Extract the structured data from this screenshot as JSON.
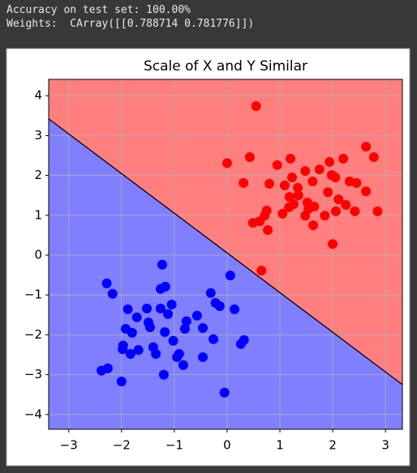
{
  "output_text": [
    "Accuracy on test set: 100.00%",
    "Weights:  CArray([[0.788714 0.781776]])"
  ],
  "chart_data": {
    "type": "scatter",
    "title": "Scale of X and Y Similar",
    "xlim": [
      -3.38,
      3.32
    ],
    "ylim": [
      -4.37,
      4.41
    ],
    "xticks": [
      {
        "value": -3,
        "label": "−3"
      },
      {
        "value": -2,
        "label": "−2"
      },
      {
        "value": -1,
        "label": "−1"
      },
      0,
      1,
      2,
      3
    ],
    "yticks": [
      {
        "value": -4,
        "label": "−4"
      },
      {
        "value": -3,
        "label": "−3"
      },
      {
        "value": -2,
        "label": "−2"
      },
      {
        "value": -1,
        "label": "−1"
      },
      0,
      1,
      2,
      3,
      4
    ],
    "grid": true,
    "boundary": {
      "x": [
        -3.38,
        3.32
      ],
      "y": [
        3.42,
        -3.25
      ],
      "color": "#000000",
      "above_color": "#ff7f7f",
      "below_color": "#7f7fff"
    },
    "series": [
      {
        "color": "#ff0000",
        "x": [
          0.55,
          0,
          0.43,
          0.31,
          1.2,
          0.95,
          1.48,
          1.75,
          1.94,
          1.23,
          0.8,
          1.09,
          1.34,
          1.62,
          1.98,
          2.05,
          2.2,
          2.63,
          2.78,
          2.32,
          2.45,
          2.63,
          1.91,
          2.11,
          2.25,
          2.42,
          2.85,
          2.06,
          1.85,
          1.65,
          1.54,
          1.48,
          1.63,
          1.35,
          1.18,
          1.26,
          1.17,
          1.05,
          0.75,
          0.71,
          0.62,
          0.49,
          0.77,
          2.0,
          0.65,
          1.52
        ],
        "y": [
          3.74,
          2.31,
          2.46,
          1.81,
          2.42,
          2.26,
          2.11,
          2.15,
          2.34,
          1.95,
          1.79,
          1.75,
          1.69,
          1.85,
          2.01,
          1.95,
          2.42,
          2.72,
          2.46,
          1.85,
          1.81,
          1.6,
          1.58,
          1.4,
          1.26,
          1.1,
          1.1,
          1.1,
          0.99,
          1.22,
          1.16,
          0.99,
          0.75,
          1.5,
          1.46,
          1.28,
          1.2,
          1.04,
          1.12,
          0.99,
          0.85,
          0.81,
          0.63,
          0.28,
          -0.39,
          1.32
        ]
      },
      {
        "color": "#0000ff",
        "x": [
          -1.23,
          0.06,
          -2.28,
          -2.17,
          -1.26,
          -1.17,
          -0.31,
          -0.22,
          -0.14,
          0.14,
          -1.05,
          -1.26,
          -1.52,
          -1.88,
          -1.71,
          -1.12,
          -0.57,
          -0.77,
          -1.49,
          -1.46,
          -1.92,
          -1.8,
          -1.18,
          -0.8,
          -0.46,
          -0.26,
          0.32,
          0.26,
          -1.02,
          -1.97,
          -1.98,
          -1.68,
          -1.4,
          -1.83,
          -1.35,
          -0.91,
          -0.95,
          -0.46,
          -0.83,
          -2.26,
          -2.38,
          -1.2,
          -2.0,
          -0.05
        ],
        "y": [
          -0.24,
          -0.51,
          -0.71,
          -0.97,
          -0.85,
          -0.79,
          -0.95,
          -1.2,
          -1.28,
          -1.36,
          -1.24,
          -1.34,
          -1.34,
          -1.36,
          -1.56,
          -1.48,
          -1.52,
          -1.66,
          -1.69,
          -1.81,
          -1.85,
          -1.95,
          -1.93,
          -1.85,
          -1.83,
          -2.11,
          -2.13,
          -2.23,
          -2.15,
          -2.27,
          -2.36,
          -2.38,
          -2.31,
          -2.48,
          -2.48,
          -2.48,
          -2.56,
          -2.56,
          -2.76,
          -2.84,
          -2.9,
          -3.0,
          -3.17,
          -3.45
        ]
      }
    ]
  }
}
